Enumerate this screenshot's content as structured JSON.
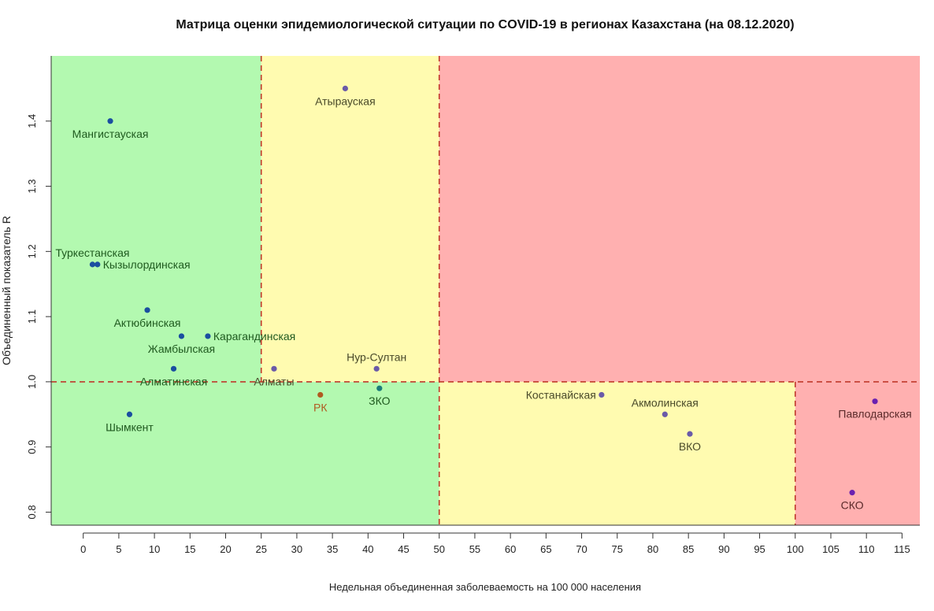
{
  "chart_data": {
    "type": "scatter",
    "title": "Матрица оценки эпидемиологической ситуации по COVID-19 в регионах Казахстана (на 08.12.2020)",
    "xlabel": "Недельная объединенная заболеваемость на 100 000 населения",
    "ylabel": "Объединенный показатель R",
    "xlim": [
      -4.5,
      117.5
    ],
    "ylim": [
      0.78,
      1.5
    ],
    "x_ticks": [
      0,
      5,
      10,
      15,
      20,
      25,
      30,
      35,
      40,
      45,
      50,
      55,
      60,
      65,
      70,
      75,
      80,
      85,
      90,
      95,
      100,
      105,
      110,
      115
    ],
    "y_ticks": [
      0.8,
      0.9,
      1.0,
      1.1,
      1.2,
      1.3,
      1.4
    ],
    "y_tick_labels": [
      "0.8",
      "0.9",
      "1.0",
      "1.1",
      "1.2",
      "1.3",
      "1.4"
    ],
    "zones": [
      {
        "x0": -4.5,
        "x1": 25,
        "y0": 1.0,
        "y1": 1.5,
        "color": "#b3f9b0"
      },
      {
        "x0": -4.5,
        "x1": 50,
        "y0": 0.78,
        "y1": 1.0,
        "color": "#b3f9b0"
      },
      {
        "x0": 25,
        "x1": 50,
        "y0": 1.0,
        "y1": 1.5,
        "color": "#fffbb0"
      },
      {
        "x0": 50,
        "x1": 117.5,
        "y0": 1.0,
        "y1": 1.5,
        "color": "#ffb0b0"
      },
      {
        "x0": 50,
        "x1": 100,
        "y0": 0.78,
        "y1": 1.0,
        "color": "#fffbb0"
      },
      {
        "x0": 100,
        "x1": 117.5,
        "y0": 0.78,
        "y1": 1.0,
        "color": "#ffb0b0"
      }
    ],
    "reference_lines": [
      {
        "axis": "x",
        "value": 25,
        "from": 1.0,
        "to": 1.5
      },
      {
        "axis": "x",
        "value": 50,
        "from": 0.78,
        "to": 1.5
      },
      {
        "axis": "x",
        "value": 100,
        "from": 0.78,
        "to": 1.0
      },
      {
        "axis": "y",
        "value": 1.0,
        "from": -4.5,
        "to": 117.5
      }
    ],
    "points": [
      {
        "label": "Мангистауская",
        "x": 3.8,
        "y": 1.4,
        "color": "#1a4ea0",
        "label_color": "#1f5a1f",
        "label_pos": "below"
      },
      {
        "label": "Туркестанская",
        "x": 1.3,
        "y": 1.18,
        "color": "#1a4ea0",
        "label_color": "#1f5a1f",
        "label_pos": "above"
      },
      {
        "label": "Кызылординская",
        "x": 2.0,
        "y": 1.18,
        "color": "#1a4ea0",
        "label_color": "#1f5a1f",
        "label_pos": "right"
      },
      {
        "label": "Актюбинская",
        "x": 9.0,
        "y": 1.11,
        "color": "#1a4ea0",
        "label_color": "#1f5a1f",
        "label_pos": "below"
      },
      {
        "label": "Жамбылская",
        "x": 13.8,
        "y": 1.07,
        "color": "#1a4ea0",
        "label_color": "#1f5a1f",
        "label_pos": "below"
      },
      {
        "label": "Карагандинская",
        "x": 17.5,
        "y": 1.07,
        "color": "#1a4ea0",
        "label_color": "#1f5a1f",
        "label_pos": "right"
      },
      {
        "label": "Алматинская",
        "x": 12.7,
        "y": 1.02,
        "color": "#1a4ea0",
        "label_color": "#1f5a1f",
        "label_pos": "below"
      },
      {
        "label": "Шымкент",
        "x": 6.5,
        "y": 0.95,
        "color": "#1a4ea0",
        "label_color": "#1f5a1f",
        "label_pos": "below"
      },
      {
        "label": "Алматы",
        "x": 26.8,
        "y": 1.02,
        "color": "#6a5aa8",
        "label_color": "#4a4a2a",
        "label_pos": "below"
      },
      {
        "label": "Атырауская",
        "x": 36.8,
        "y": 1.45,
        "color": "#6a5aa8",
        "label_color": "#4a4a2a",
        "label_pos": "below"
      },
      {
        "label": "Нур-Султан",
        "x": 41.2,
        "y": 1.02,
        "color": "#6a5aa8",
        "label_color": "#4a4a2a",
        "label_pos": "above"
      },
      {
        "label": "РК",
        "x": 33.3,
        "y": 0.98,
        "color": "#b05a20",
        "label_color": "#b05a20",
        "label_pos": "below"
      },
      {
        "label": "ЗКО",
        "x": 41.6,
        "y": 0.99,
        "color": "#1a7a7a",
        "label_color": "#1f5a1f",
        "label_pos": "below"
      },
      {
        "label": "Костанайская",
        "x": 72.8,
        "y": 0.98,
        "color": "#6a5aa8",
        "label_color": "#4a4a2a",
        "label_pos": "left"
      },
      {
        "label": "Акмолинская",
        "x": 81.7,
        "y": 0.95,
        "color": "#6a5aa8",
        "label_color": "#4a4a2a",
        "label_pos": "above"
      },
      {
        "label": "ВКО",
        "x": 85.2,
        "y": 0.92,
        "color": "#6a5aa8",
        "label_color": "#4a4a2a",
        "label_pos": "below"
      },
      {
        "label": "Павлодарская",
        "x": 111.2,
        "y": 0.97,
        "color": "#6a20b0",
        "label_color": "#5a2a2a",
        "label_pos": "below"
      },
      {
        "label": "СКО",
        "x": 108.0,
        "y": 0.83,
        "color": "#6a20b0",
        "label_color": "#5a2a2a",
        "label_pos": "below"
      }
    ]
  }
}
